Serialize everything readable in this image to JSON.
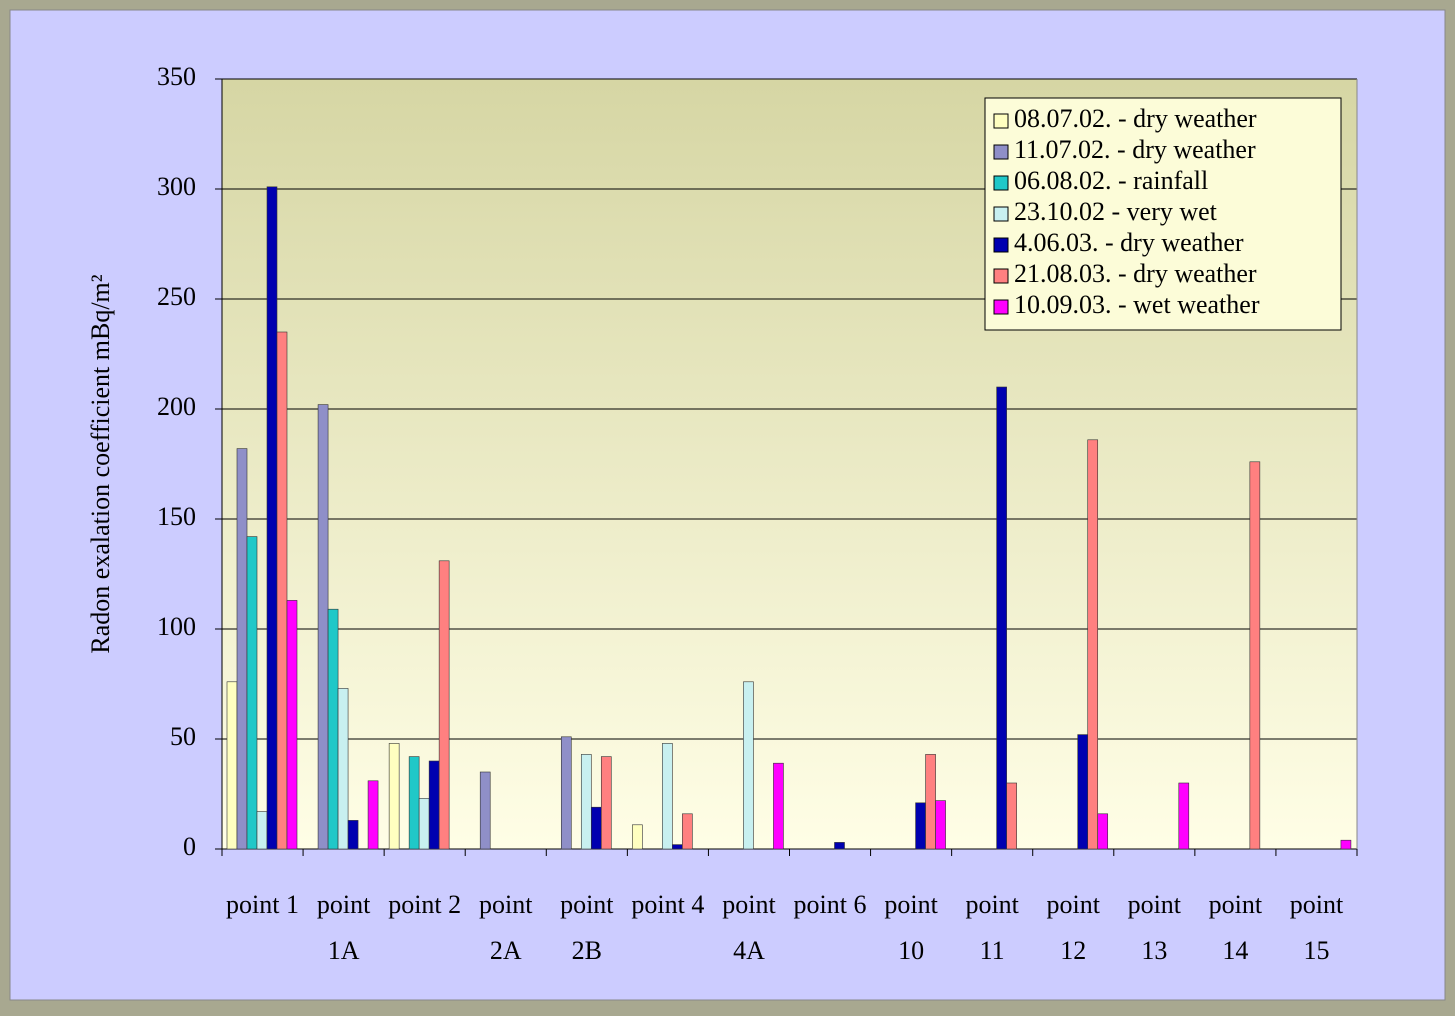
{
  "chart_data": {
    "type": "bar",
    "y_axis_label": "Radon exalation coefficient mBq/m²",
    "categories": [
      "point 1",
      "point 1A",
      "point 2",
      "point 2A",
      "point 2B",
      "point 4",
      "point 4A",
      "point 6",
      "point 10",
      "point 11",
      "point 12",
      "point 13",
      "point 14",
      "point 15"
    ],
    "series": [
      {
        "name": "08.07.02. - dry weather",
        "color": "#ffffc0",
        "values": [
          76,
          null,
          48,
          null,
          null,
          11,
          null,
          null,
          null,
          null,
          null,
          null,
          null,
          null
        ]
      },
      {
        "name": "11.07.02. - dry weather",
        "color": "#8f8fc8",
        "values": [
          182,
          202,
          null,
          35,
          51,
          null,
          null,
          null,
          null,
          null,
          null,
          null,
          null,
          null
        ]
      },
      {
        "name": "06.08.02. - rainfall",
        "color": "#20c8c8",
        "values": [
          142,
          109,
          42,
          null,
          null,
          null,
          null,
          null,
          null,
          null,
          null,
          null,
          null,
          null
        ]
      },
      {
        "name": "23.10.02 -  very wet",
        "color": "#c8f0f0",
        "values": [
          17,
          73,
          23,
          null,
          43,
          48,
          76,
          null,
          null,
          null,
          null,
          null,
          null,
          null
        ]
      },
      {
        "name": "4.06.03. - dry weather",
        "color": "#0000b0",
        "values": [
          301,
          13,
          40,
          null,
          19,
          2,
          null,
          3,
          21,
          210,
          52,
          null,
          null,
          null
        ]
      },
      {
        "name": "21.08.03. - dry weather",
        "color": "#ff8080",
        "values": [
          235,
          null,
          131,
          null,
          42,
          16,
          null,
          null,
          43,
          30,
          186,
          null,
          176,
          null
        ]
      },
      {
        "name": "10.09.03. - wet weather",
        "color": "#ff00ff",
        "values": [
          113,
          31,
          null,
          null,
          null,
          null,
          39,
          null,
          22,
          null,
          16,
          30,
          null,
          4
        ]
      }
    ],
    "ylim": [
      0,
      350
    ],
    "yticks": [
      0,
      50,
      100,
      150,
      200,
      250,
      300,
      350
    ],
    "grid": true,
    "legend": "top-right"
  }
}
